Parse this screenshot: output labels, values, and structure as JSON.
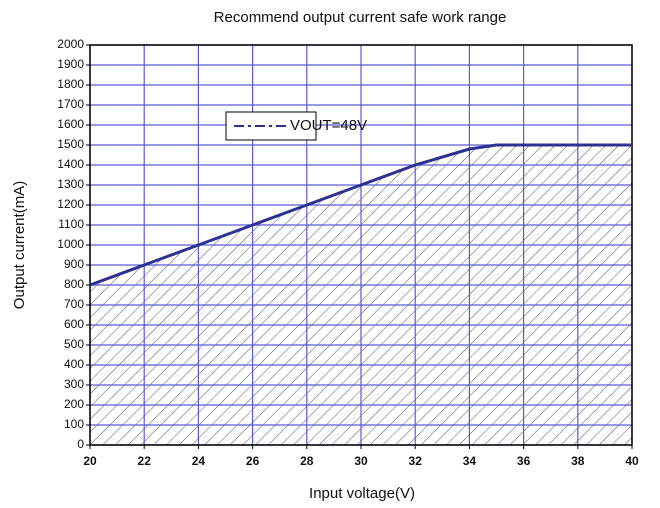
{
  "chart_data": {
    "type": "line",
    "title": "Recommend output current safe work range",
    "x_label": "Input voltage(V)",
    "y_label": "Output current(mA)",
    "x": [
      20,
      22,
      24,
      26,
      28,
      30,
      32,
      34,
      35,
      36,
      38,
      40
    ],
    "series": [
      {
        "name": "VOUT=48V",
        "color": "#2e3192",
        "values": [
          800,
          900,
          1000,
          1100,
          1200,
          1300,
          1400,
          1480,
          1500,
          1500,
          1500,
          1500
        ]
      }
    ],
    "xlim": [
      20,
      40
    ],
    "xticks": [
      20,
      22,
      24,
      26,
      28,
      30,
      32,
      34,
      36,
      38,
      40
    ],
    "ylim": [
      0,
      2000
    ],
    "yticks": [
      0,
      100,
      200,
      300,
      400,
      500,
      600,
      700,
      800,
      900,
      1000,
      1100,
      1200,
      1300,
      1400,
      1500,
      1600,
      1700,
      1800,
      1900,
      2000
    ],
    "grid": true,
    "grid_color": "#5a5ad6"
  }
}
